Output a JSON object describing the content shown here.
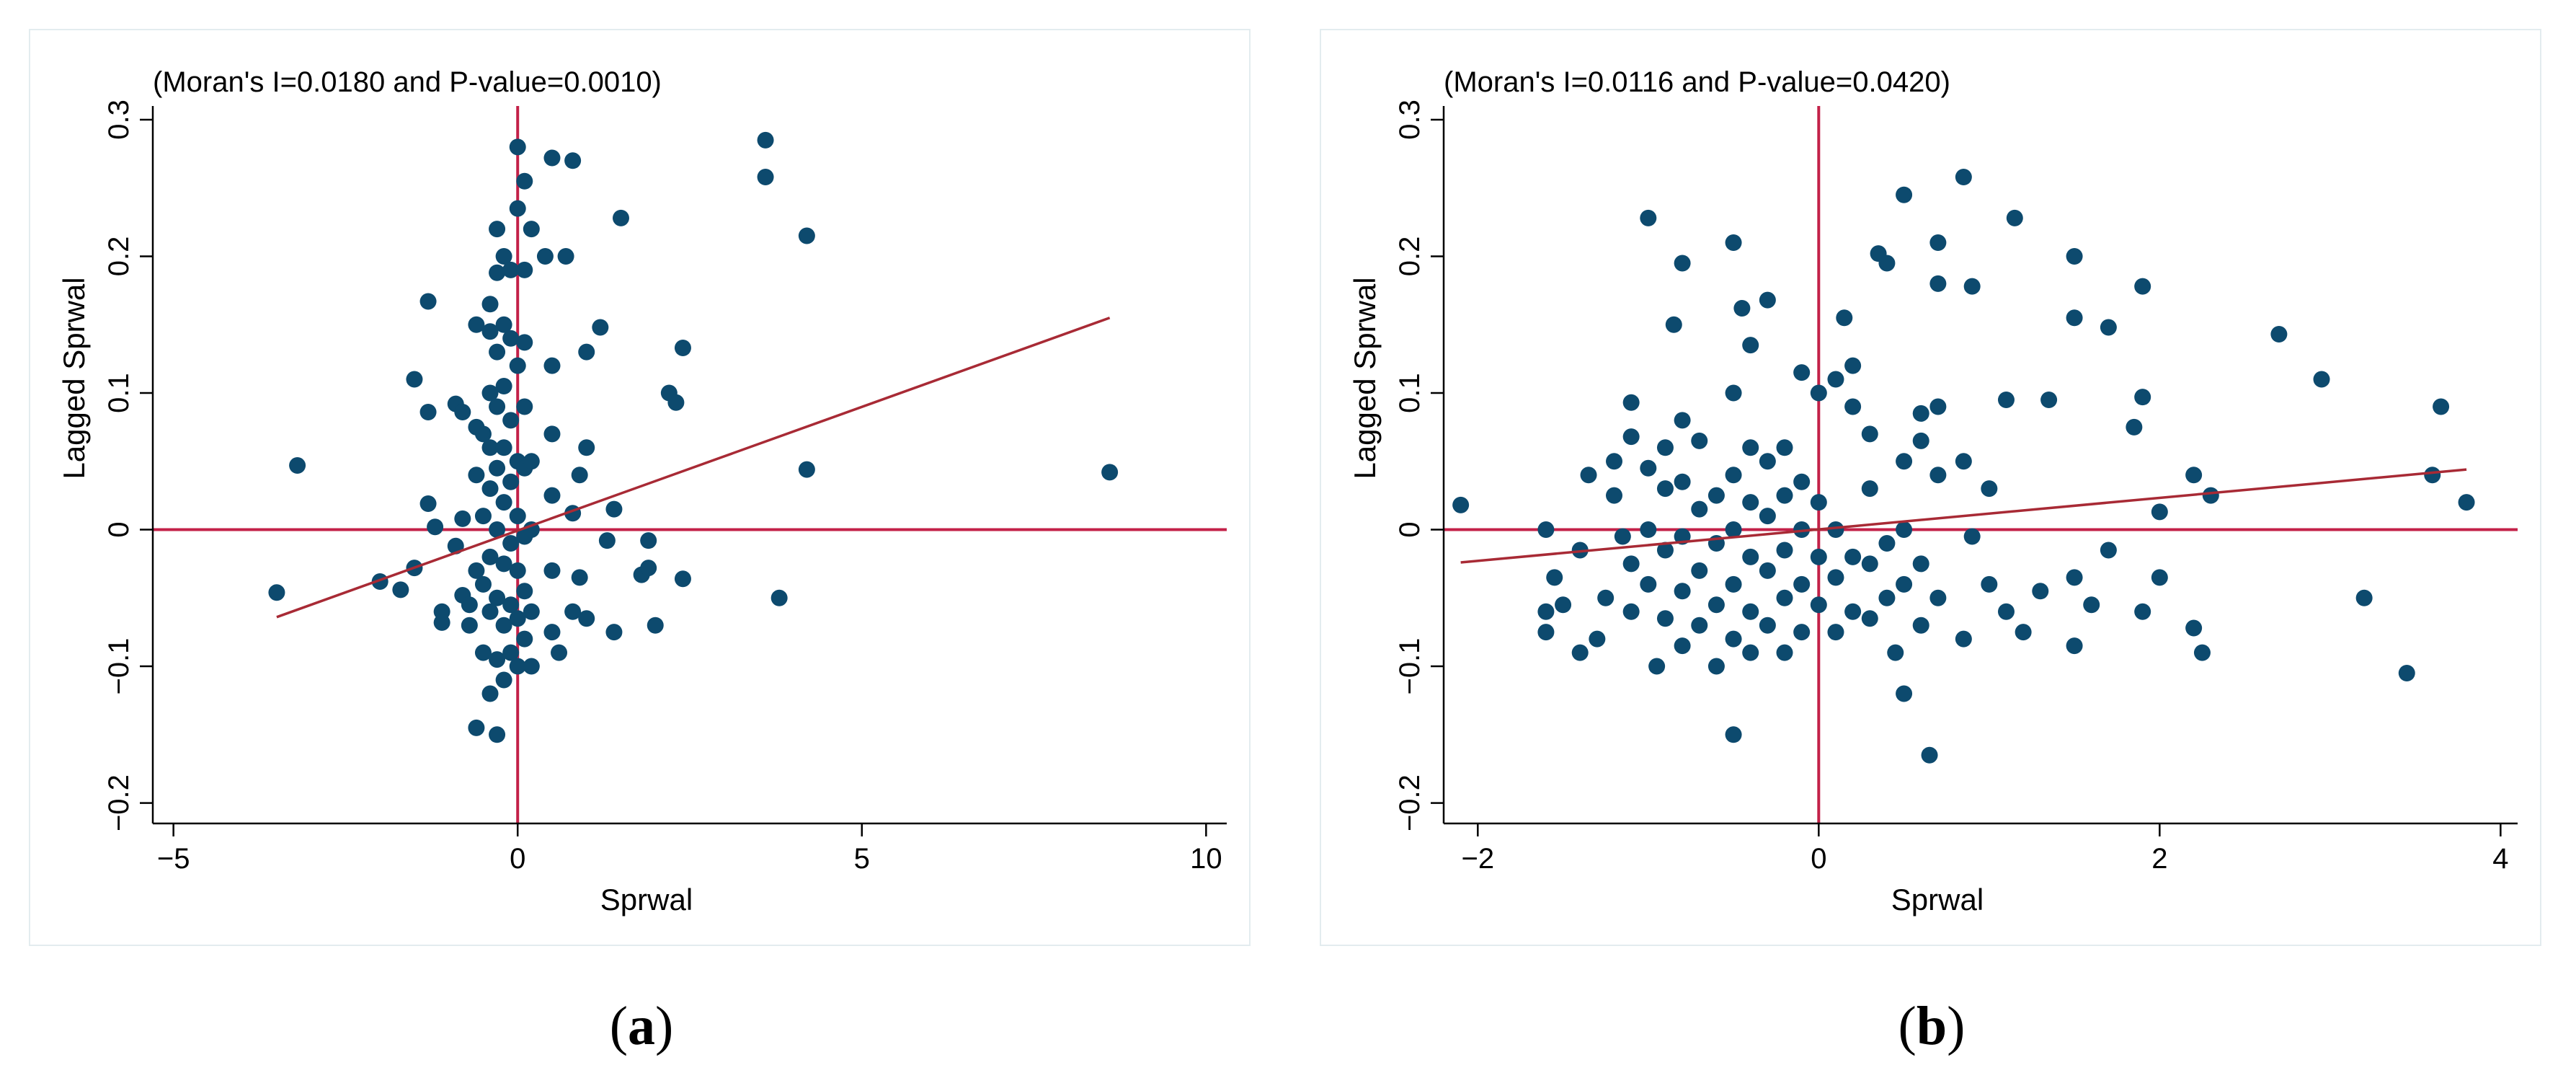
{
  "colors": {
    "point": "#0d4a6e",
    "line": "#c32148",
    "fit": "#a82a35",
    "axis": "#000000",
    "frame": "#e3ecef"
  },
  "chart_data": [
    {
      "type": "scatter",
      "panel_label": {
        "open": "(",
        "letter": "a",
        "close": ")"
      },
      "title": "(Moran's I=0.0180 and P-value=0.0010)",
      "xlabel": "Sprwal",
      "ylabel": "Lagged Sprwal",
      "xlim": [
        -5.3,
        10.3
      ],
      "ylim": [
        -0.215,
        0.31
      ],
      "xticks": [
        -5,
        0,
        5,
        10
      ],
      "xticklabels": [
        "−5",
        "0",
        "5",
        "10"
      ],
      "yticks": [
        -0.2,
        -0.1,
        0,
        0.1,
        0.2,
        0.3
      ],
      "yticklabels": [
        "−0.2",
        "−0.1",
        "0",
        "0.1",
        "0.2",
        "0.3"
      ],
      "fit_line": {
        "x": [
          -3.5,
          8.6
        ],
        "y": [
          -0.064,
          0.155
        ]
      },
      "points": [
        [
          -3.5,
          -0.046
        ],
        [
          -3.2,
          0.047
        ],
        [
          -2.0,
          -0.038
        ],
        [
          -1.7,
          -0.044
        ],
        [
          -1.5,
          -0.028
        ],
        [
          -1.5,
          0.11
        ],
        [
          -1.3,
          0.167
        ],
        [
          -1.3,
          0.086
        ],
        [
          -1.3,
          0.019
        ],
        [
          -1.2,
          0.002
        ],
        [
          -1.1,
          -0.06
        ],
        [
          -1.1,
          -0.068
        ],
        [
          -0.9,
          0.092
        ],
        [
          -0.9,
          -0.012
        ],
        [
          -0.8,
          0.086
        ],
        [
          -0.8,
          0.008
        ],
        [
          -0.8,
          -0.048
        ],
        [
          -0.7,
          -0.055
        ],
        [
          -0.7,
          -0.07
        ],
        [
          -0.6,
          0.15
        ],
        [
          -0.6,
          0.075
        ],
        [
          -0.6,
          0.04
        ],
        [
          -0.6,
          -0.03
        ],
        [
          -0.6,
          -0.145
        ],
        [
          -0.5,
          0.07
        ],
        [
          -0.5,
          0.01
        ],
        [
          -0.5,
          -0.04
        ],
        [
          -0.5,
          -0.09
        ],
        [
          -0.4,
          0.165
        ],
        [
          -0.4,
          0.145
        ],
        [
          -0.4,
          0.1
        ],
        [
          -0.4,
          0.06
        ],
        [
          -0.4,
          0.03
        ],
        [
          -0.4,
          -0.02
        ],
        [
          -0.4,
          -0.06
        ],
        [
          -0.4,
          -0.12
        ],
        [
          -0.3,
          0.22
        ],
        [
          -0.3,
          0.188
        ],
        [
          -0.3,
          0.13
        ],
        [
          -0.3,
          0.09
        ],
        [
          -0.3,
          0.045
        ],
        [
          -0.3,
          0.0
        ],
        [
          -0.3,
          -0.05
        ],
        [
          -0.3,
          -0.095
        ],
        [
          -0.3,
          -0.15
        ],
        [
          -0.2,
          0.2
        ],
        [
          -0.2,
          0.15
        ],
        [
          -0.2,
          0.105
        ],
        [
          -0.2,
          0.06
        ],
        [
          -0.2,
          0.02
        ],
        [
          -0.2,
          -0.025
        ],
        [
          -0.2,
          -0.07
        ],
        [
          -0.2,
          -0.11
        ],
        [
          -0.1,
          0.19
        ],
        [
          -0.1,
          0.14
        ],
        [
          -0.1,
          0.08
        ],
        [
          -0.1,
          0.035
        ],
        [
          -0.1,
          -0.01
        ],
        [
          -0.1,
          -0.055
        ],
        [
          -0.1,
          -0.09
        ],
        [
          0.0,
          0.28
        ],
        [
          0.0,
          0.235
        ],
        [
          0.0,
          0.12
        ],
        [
          0.0,
          0.05
        ],
        [
          0.0,
          0.01
        ],
        [
          0.0,
          -0.03
        ],
        [
          0.0,
          -0.065
        ],
        [
          0.0,
          -0.1
        ],
        [
          0.1,
          0.255
        ],
        [
          0.1,
          0.19
        ],
        [
          0.1,
          0.137
        ],
        [
          0.1,
          0.09
        ],
        [
          0.1,
          0.045
        ],
        [
          0.1,
          -0.005
        ],
        [
          0.1,
          -0.045
        ],
        [
          0.1,
          -0.08
        ],
        [
          0.2,
          0.22
        ],
        [
          0.2,
          0.05
        ],
        [
          0.2,
          0.0
        ],
        [
          0.2,
          -0.06
        ],
        [
          0.2,
          -0.1
        ],
        [
          0.4,
          0.2
        ],
        [
          0.5,
          0.272
        ],
        [
          0.5,
          0.12
        ],
        [
          0.5,
          0.07
        ],
        [
          0.5,
          0.025
        ],
        [
          0.5,
          -0.03
        ],
        [
          0.5,
          -0.075
        ],
        [
          0.6,
          -0.09
        ],
        [
          0.7,
          0.2
        ],
        [
          0.8,
          0.27
        ],
        [
          0.8,
          0.012
        ],
        [
          0.8,
          -0.06
        ],
        [
          0.9,
          0.04
        ],
        [
          0.9,
          -0.035
        ],
        [
          1.0,
          0.13
        ],
        [
          1.0,
          0.06
        ],
        [
          1.0,
          -0.065
        ],
        [
          1.2,
          0.148
        ],
        [
          1.3,
          -0.008
        ],
        [
          1.4,
          0.015
        ],
        [
          1.4,
          -0.075
        ],
        [
          1.5,
          0.228
        ],
        [
          1.8,
          -0.033
        ],
        [
          1.9,
          -0.008
        ],
        [
          1.9,
          -0.028
        ],
        [
          2.0,
          -0.07
        ],
        [
          2.2,
          0.1
        ],
        [
          2.3,
          0.093
        ],
        [
          2.4,
          0.133
        ],
        [
          2.4,
          -0.036
        ],
        [
          3.6,
          0.285
        ],
        [
          3.6,
          0.258
        ],
        [
          3.8,
          -0.05
        ],
        [
          4.2,
          0.215
        ],
        [
          4.2,
          0.044
        ],
        [
          8.6,
          0.042
        ]
      ]
    },
    {
      "type": "scatter",
      "panel_label": {
        "open": "(",
        "letter": "b",
        "close": ")"
      },
      "title": "(Moran's I=0.0116 and P-value=0.0420)",
      "xlabel": "Sprwal",
      "ylabel": "Lagged Sprwal",
      "xlim": [
        -2.2,
        4.1
      ],
      "ylim": [
        -0.215,
        0.31
      ],
      "xticks": [
        -2,
        0,
        2,
        4
      ],
      "xticklabels": [
        "−2",
        "0",
        "2",
        "4"
      ],
      "yticks": [
        -0.2,
        -0.1,
        0,
        0.1,
        0.2,
        0.3
      ],
      "yticklabels": [
        "−0.2",
        "−0.1",
        "0",
        "0.1",
        "0.2",
        "0.3"
      ],
      "fit_line": {
        "x": [
          -2.1,
          3.8
        ],
        "y": [
          -0.024,
          0.044
        ]
      },
      "points": [
        [
          -2.1,
          0.018
        ],
        [
          -1.6,
          0.0
        ],
        [
          -1.6,
          -0.06
        ],
        [
          -1.6,
          -0.075
        ],
        [
          -1.55,
          -0.035
        ],
        [
          -1.5,
          -0.055
        ],
        [
          -1.4,
          -0.015
        ],
        [
          -1.4,
          -0.09
        ],
        [
          -1.35,
          0.04
        ],
        [
          -1.3,
          -0.08
        ],
        [
          -1.25,
          -0.05
        ],
        [
          -1.2,
          0.05
        ],
        [
          -1.2,
          0.025
        ],
        [
          -1.15,
          -0.005
        ],
        [
          -1.1,
          0.093
        ],
        [
          -1.1,
          0.068
        ],
        [
          -1.1,
          -0.025
        ],
        [
          -1.1,
          -0.06
        ],
        [
          -1.0,
          0.228
        ],
        [
          -1.0,
          0.045
        ],
        [
          -1.0,
          0.0
        ],
        [
          -1.0,
          -0.04
        ],
        [
          -0.95,
          -0.1
        ],
        [
          -0.9,
          0.06
        ],
        [
          -0.9,
          0.03
        ],
        [
          -0.9,
          -0.015
        ],
        [
          -0.9,
          -0.065
        ],
        [
          -0.85,
          0.15
        ],
        [
          -0.8,
          0.195
        ],
        [
          -0.8,
          0.08
        ],
        [
          -0.8,
          0.035
        ],
        [
          -0.8,
          -0.005
        ],
        [
          -0.8,
          -0.045
        ],
        [
          -0.8,
          -0.085
        ],
        [
          -0.7,
          0.065
        ],
        [
          -0.7,
          0.015
        ],
        [
          -0.7,
          -0.03
        ],
        [
          -0.7,
          -0.07
        ],
        [
          -0.6,
          0.025
        ],
        [
          -0.6,
          -0.01
        ],
        [
          -0.6,
          -0.055
        ],
        [
          -0.6,
          -0.1
        ],
        [
          -0.5,
          0.21
        ],
        [
          -0.5,
          0.1
        ],
        [
          -0.5,
          0.04
        ],
        [
          -0.5,
          0.0
        ],
        [
          -0.5,
          -0.04
        ],
        [
          -0.5,
          -0.08
        ],
        [
          -0.5,
          -0.15
        ],
        [
          -0.45,
          0.162
        ],
        [
          -0.4,
          0.135
        ],
        [
          -0.4,
          0.06
        ],
        [
          -0.4,
          0.02
        ],
        [
          -0.4,
          -0.02
        ],
        [
          -0.4,
          -0.06
        ],
        [
          -0.4,
          -0.09
        ],
        [
          -0.3,
          0.168
        ],
        [
          -0.3,
          0.05
        ],
        [
          -0.3,
          0.01
        ],
        [
          -0.3,
          -0.03
        ],
        [
          -0.3,
          -0.07
        ],
        [
          -0.2,
          0.06
        ],
        [
          -0.2,
          0.025
        ],
        [
          -0.2,
          -0.015
        ],
        [
          -0.2,
          -0.05
        ],
        [
          -0.2,
          -0.09
        ],
        [
          -0.1,
          0.115
        ],
        [
          -0.1,
          0.035
        ],
        [
          -0.1,
          0.0
        ],
        [
          -0.1,
          -0.04
        ],
        [
          -0.1,
          -0.075
        ],
        [
          0.0,
          0.1
        ],
        [
          0.0,
          0.02
        ],
        [
          0.0,
          -0.02
        ],
        [
          0.0,
          -0.055
        ],
        [
          0.1,
          0.11
        ],
        [
          0.1,
          0.0
        ],
        [
          0.1,
          -0.035
        ],
        [
          0.1,
          -0.075
        ],
        [
          0.15,
          0.155
        ],
        [
          0.2,
          0.12
        ],
        [
          0.2,
          0.09
        ],
        [
          0.2,
          -0.02
        ],
        [
          0.2,
          -0.06
        ],
        [
          0.3,
          0.07
        ],
        [
          0.3,
          0.03
        ],
        [
          0.3,
          -0.025
        ],
        [
          0.3,
          -0.065
        ],
        [
          0.35,
          0.202
        ],
        [
          0.4,
          0.195
        ],
        [
          0.4,
          -0.01
        ],
        [
          0.4,
          -0.05
        ],
        [
          0.45,
          -0.09
        ],
        [
          0.5,
          0.245
        ],
        [
          0.5,
          0.05
        ],
        [
          0.5,
          0.0
        ],
        [
          0.5,
          -0.04
        ],
        [
          0.5,
          -0.12
        ],
        [
          0.6,
          0.085
        ],
        [
          0.6,
          0.065
        ],
        [
          0.6,
          -0.025
        ],
        [
          0.6,
          -0.07
        ],
        [
          0.65,
          -0.165
        ],
        [
          0.7,
          0.21
        ],
        [
          0.7,
          0.18
        ],
        [
          0.7,
          0.09
        ],
        [
          0.7,
          0.04
        ],
        [
          0.7,
          -0.05
        ],
        [
          0.85,
          0.258
        ],
        [
          0.85,
          0.05
        ],
        [
          0.85,
          -0.08
        ],
        [
          0.9,
          0.178
        ],
        [
          0.9,
          -0.005
        ],
        [
          1.0,
          0.03
        ],
        [
          1.0,
          -0.04
        ],
        [
          1.1,
          0.095
        ],
        [
          1.1,
          -0.06
        ],
        [
          1.15,
          0.228
        ],
        [
          1.2,
          -0.075
        ],
        [
          1.3,
          -0.045
        ],
        [
          1.35,
          0.095
        ],
        [
          1.5,
          0.2
        ],
        [
          1.5,
          0.155
        ],
        [
          1.5,
          -0.035
        ],
        [
          1.5,
          -0.085
        ],
        [
          1.6,
          -0.055
        ],
        [
          1.7,
          0.148
        ],
        [
          1.7,
          -0.015
        ],
        [
          1.85,
          0.075
        ],
        [
          1.9,
          0.178
        ],
        [
          1.9,
          0.097
        ],
        [
          1.9,
          -0.06
        ],
        [
          2.0,
          0.013
        ],
        [
          2.0,
          -0.035
        ],
        [
          2.2,
          0.04
        ],
        [
          2.2,
          -0.072
        ],
        [
          2.25,
          -0.09
        ],
        [
          2.3,
          0.025
        ],
        [
          2.7,
          0.143
        ],
        [
          2.95,
          0.11
        ],
        [
          3.2,
          -0.05
        ],
        [
          3.45,
          -0.105
        ],
        [
          3.6,
          0.04
        ],
        [
          3.65,
          0.09
        ],
        [
          3.8,
          0.02
        ]
      ]
    }
  ]
}
